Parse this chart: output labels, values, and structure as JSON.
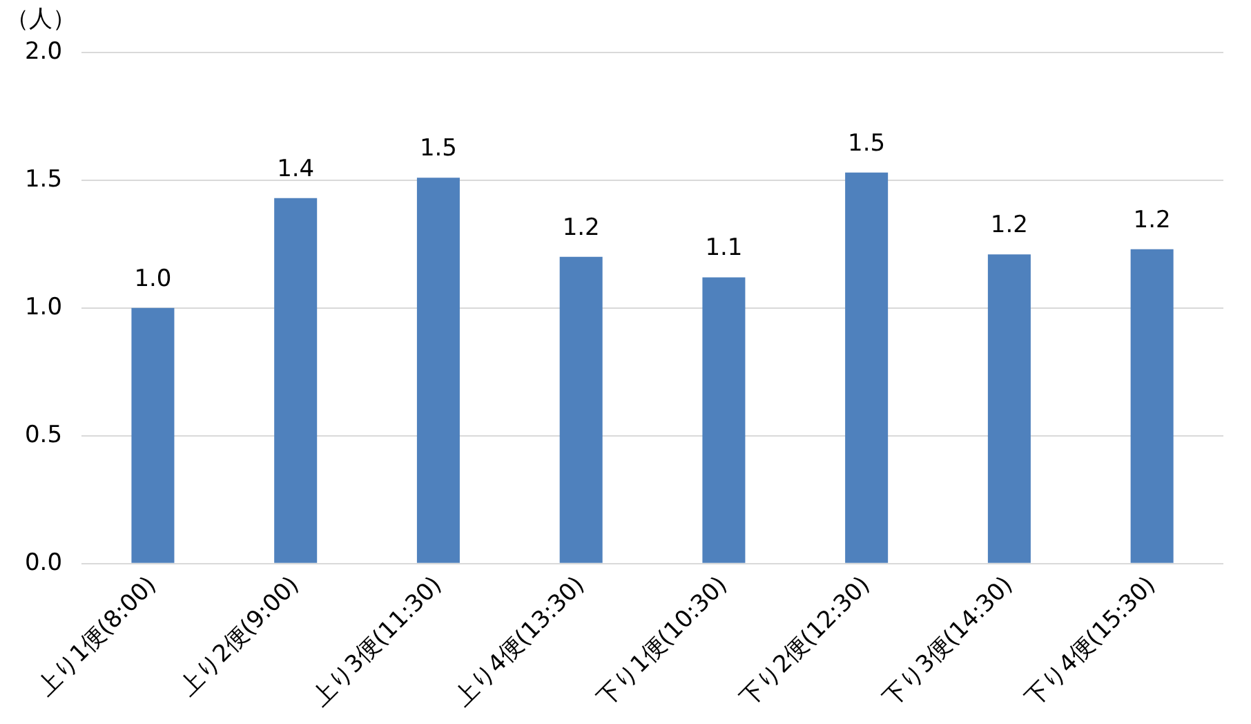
{
  "chart_data": {
    "type": "bar",
    "ylabel": "（人）",
    "categories": [
      "上り1便(8:00)",
      "上り2便(9:00)",
      "上り3便(11:30)",
      "上り4便(13:30)",
      "下り1便(10:30)",
      "下り2便(12:30)",
      "下り3便(14:30)",
      "下り4便(15:30)"
    ],
    "values": [
      1.0,
      1.43,
      1.51,
      1.2,
      1.12,
      1.53,
      1.21,
      1.23
    ],
    "value_labels": [
      "1.0",
      "1.4",
      "1.5",
      "1.2",
      "1.1",
      "1.5",
      "1.2",
      "1.2"
    ],
    "color": "#4f81bd",
    "ylim": [
      0,
      2
    ],
    "yticks": [
      {
        "value": 0,
        "label": "0.0"
      },
      {
        "value": 0.5,
        "label": "0.5"
      },
      {
        "value": 1,
        "label": "1.0"
      },
      {
        "value": 1.5,
        "label": "1.5"
      },
      {
        "value": 2,
        "label": "2.0"
      }
    ],
    "grid": "y",
    "legend": false
  }
}
